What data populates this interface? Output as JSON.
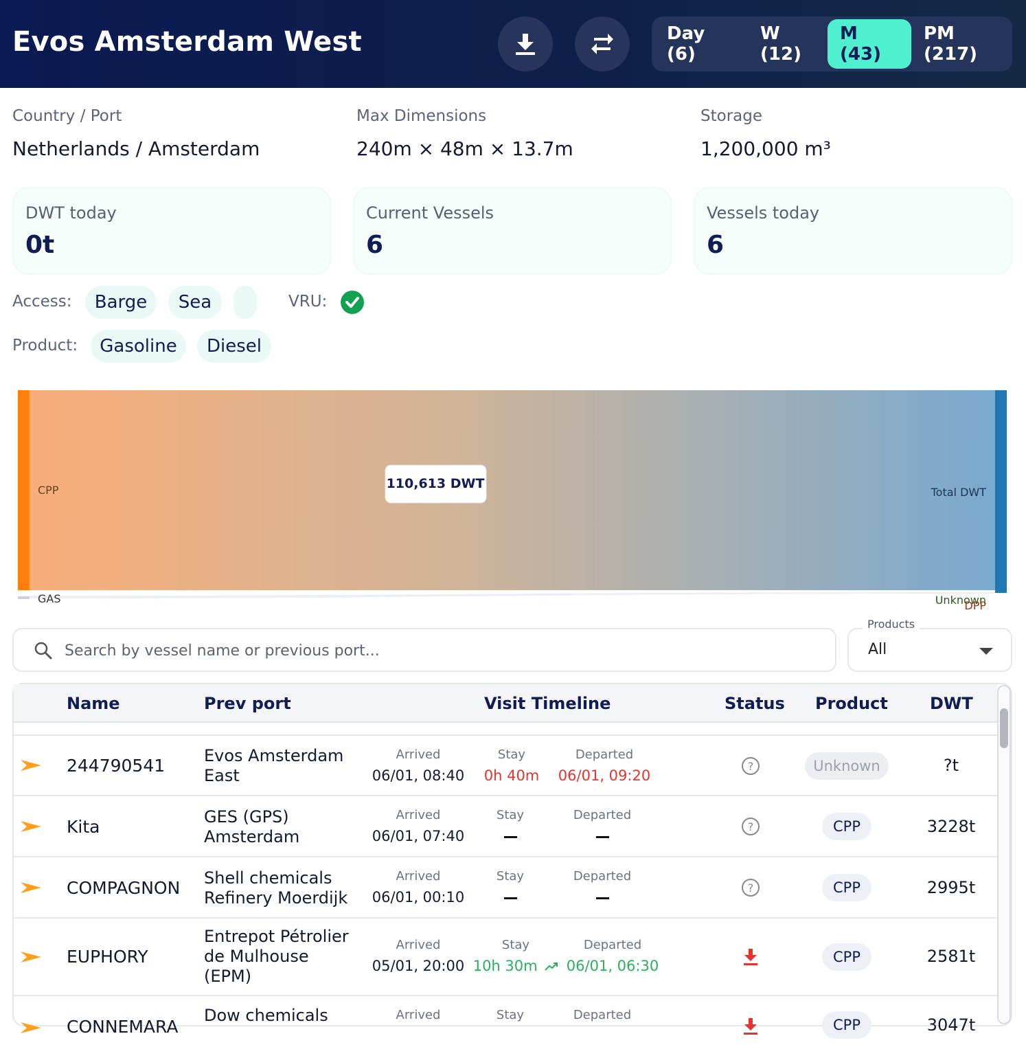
{
  "header": {
    "title": "Evos Amsterdam West",
    "download_icon": "download-icon",
    "swap_icon": "swap-arrows-icon",
    "periods": [
      {
        "label": "Day (6)",
        "active": false
      },
      {
        "label": "W (12)",
        "active": false
      },
      {
        "label": "M (43)",
        "active": true
      },
      {
        "label": "PM (217)",
        "active": false
      }
    ]
  },
  "info": {
    "country_label": "Country / Port",
    "country_value": "Netherlands / Amsterdam",
    "dims_label": "Max Dimensions",
    "dims_value": "240m × 48m × 13.7m",
    "storage_label": "Storage",
    "storage_value": "1,200,000 m³"
  },
  "stats": [
    {
      "label": "DWT today",
      "value": "0t"
    },
    {
      "label": "Current Vessels",
      "value": "6"
    },
    {
      "label": "Vessels today",
      "value": "6"
    }
  ],
  "access": {
    "label": "Access:",
    "chips": [
      "Barge",
      "Sea",
      ""
    ],
    "vru_label": "VRU:",
    "vru_icon": "check-circle-icon"
  },
  "product": {
    "label": "Product:",
    "chips": [
      "Gasoline",
      "Diesel"
    ]
  },
  "sankey": {
    "left_nodes": [
      "CPP",
      "GAS"
    ],
    "right_nodes": [
      "Total DWT",
      "Unknown",
      "DPP"
    ],
    "tooltip": "110,613 DWT",
    "colors": {
      "cpp": "#ff7f0e",
      "total": "#1f77b4",
      "gas": "#d5cbe4"
    }
  },
  "search": {
    "placeholder": "Search by vessel name or previous port...",
    "icon": "search-icon"
  },
  "products_filter": {
    "legend": "Products",
    "value": "All"
  },
  "table": {
    "headers": [
      "Name",
      "Prev port",
      "Visit Timeline",
      "Status",
      "Product",
      "DWT"
    ],
    "arrived_caption": "Arrived",
    "stay_caption": "Stay",
    "departed_caption": "Departed",
    "rows": [
      {
        "name": "244790541",
        "prev_port": "Evos Amsterdam East",
        "arrived": "06/01, 08:40",
        "stay": "0h 40m",
        "departed": "06/01, 09:20",
        "status_icon": "question-circle-icon",
        "product": "Unknown",
        "dwt": "?t"
      },
      {
        "name": "Kita",
        "prev_port": "GES (GPS) Amsterdam",
        "arrived": "06/01, 07:40",
        "stay": "",
        "departed": "",
        "status_icon": "question-circle-icon",
        "product": "CPP",
        "dwt": "3228t"
      },
      {
        "name": "COMPAGNON",
        "prev_port": "Shell chemicals Refinery Moerdijk",
        "arrived": "06/01, 00:10",
        "stay": "",
        "departed": "",
        "status_icon": "question-circle-icon",
        "product": "CPP",
        "dwt": "2995t"
      },
      {
        "name": "EUPHORY",
        "prev_port": "Entrepot Pétrolier de Mulhouse (EPM)",
        "arrived": "05/01, 20:00",
        "stay": "10h 30m",
        "departed": "06/01, 06:30",
        "status_icon": "unloading-icon",
        "product": "CPP",
        "dwt": "2581t"
      },
      {
        "name": "CONNEMARA",
        "prev_port": "Dow chemicals",
        "arrived": "",
        "stay": "",
        "departed": "",
        "status_icon": "unloading-icon",
        "product": "CPP",
        "dwt": "3047t"
      }
    ]
  }
}
